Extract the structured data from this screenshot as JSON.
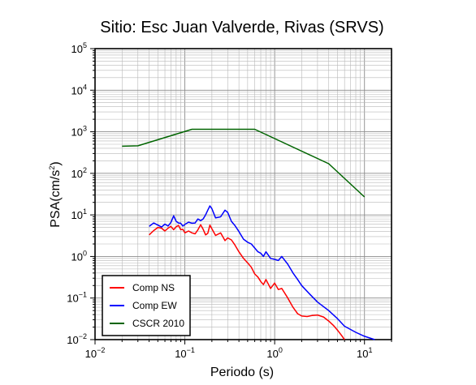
{
  "chart_data": {
    "type": "line",
    "title": "Sitio: Esc Juan Valverde, Rivas (SRVS)",
    "xlabel": "Periodo (s)",
    "ylabel_base": "PSA(cm/s",
    "ylabel_exp": "2",
    "ylabel_close": ")",
    "xscale": "log",
    "yscale": "log",
    "xlim": [
      0.01,
      20
    ],
    "ylim": [
      0.01,
      100000
    ],
    "grid": true,
    "legend_position": "bottom-left",
    "x_ticks": [
      {
        "value": 0.01,
        "base": "10",
        "exp": "−2"
      },
      {
        "value": 0.1,
        "base": "10",
        "exp": "−1"
      },
      {
        "value": 1,
        "base": "10",
        "exp": "0"
      },
      {
        "value": 10,
        "base": "10",
        "exp": "1"
      }
    ],
    "y_ticks": [
      {
        "value": 0.01,
        "base": "10",
        "exp": "−2"
      },
      {
        "value": 0.1,
        "base": "10",
        "exp": "−1"
      },
      {
        "value": 1,
        "base": "10",
        "exp": "0"
      },
      {
        "value": 10,
        "base": "10",
        "exp": "1"
      },
      {
        "value": 100,
        "base": "10",
        "exp": "2"
      },
      {
        "value": 1000,
        "base": "10",
        "exp": "3"
      },
      {
        "value": 10000,
        "base": "10",
        "exp": "4"
      },
      {
        "value": 100000,
        "base": "10",
        "exp": "5"
      }
    ],
    "series": [
      {
        "name": "Comp NS",
        "color": "#ff0000",
        "x": [
          0.04,
          0.045,
          0.05,
          0.055,
          0.06,
          0.065,
          0.07,
          0.075,
          0.08,
          0.085,
          0.09,
          0.095,
          0.1,
          0.11,
          0.12,
          0.13,
          0.14,
          0.15,
          0.16,
          0.17,
          0.18,
          0.19,
          0.2,
          0.22,
          0.25,
          0.28,
          0.3,
          0.33,
          0.36,
          0.4,
          0.45,
          0.5,
          0.55,
          0.6,
          0.65,
          0.7,
          0.75,
          0.8,
          0.9,
          1.0,
          1.1,
          1.2,
          1.4,
          1.6,
          1.8,
          2.0,
          2.3,
          2.6,
          3.0,
          3.5,
          4.0,
          4.5,
          5.0,
          5.5,
          6.0
        ],
        "y": [
          3.3,
          4.2,
          5.0,
          4.8,
          4.1,
          4.8,
          5.3,
          4.4,
          5.2,
          5.6,
          4.4,
          4.5,
          3.7,
          4.1,
          3.7,
          3.5,
          4.4,
          5.8,
          4.5,
          3.3,
          3.6,
          5.7,
          4.6,
          3.2,
          3.7,
          2.4,
          2.8,
          2.5,
          1.9,
          1.3,
          0.9,
          0.7,
          0.55,
          0.38,
          0.32,
          0.25,
          0.21,
          0.28,
          0.17,
          0.23,
          0.16,
          0.17,
          0.1,
          0.06,
          0.042,
          0.037,
          0.036,
          0.038,
          0.039,
          0.035,
          0.028,
          0.022,
          0.017,
          0.013,
          0.01
        ]
      },
      {
        "name": "Comp EW",
        "color": "#0000ff",
        "x": [
          0.04,
          0.045,
          0.05,
          0.055,
          0.06,
          0.065,
          0.07,
          0.075,
          0.08,
          0.085,
          0.09,
          0.095,
          0.1,
          0.11,
          0.12,
          0.13,
          0.14,
          0.15,
          0.16,
          0.17,
          0.18,
          0.19,
          0.2,
          0.22,
          0.25,
          0.28,
          0.3,
          0.33,
          0.36,
          0.4,
          0.45,
          0.5,
          0.55,
          0.6,
          0.65,
          0.7,
          0.75,
          0.8,
          0.9,
          1.0,
          1.1,
          1.2,
          1.4,
          1.6,
          1.8,
          2.0,
          2.5,
          3.0,
          4.0,
          5.0,
          6.0,
          8.0,
          10.0,
          13.0
        ],
        "y": [
          5.3,
          6.4,
          5.7,
          5.1,
          6.0,
          5.4,
          6.6,
          9.5,
          7.0,
          6.4,
          6.3,
          5.4,
          5.9,
          6.7,
          6.3,
          6.4,
          8.0,
          7.3,
          8.0,
          10.0,
          13.0,
          16.5,
          14.0,
          8.5,
          9.0,
          13.0,
          11.5,
          7.0,
          5.6,
          4.0,
          2.6,
          2.2,
          2.0,
          1.6,
          1.3,
          1.2,
          1.0,
          1.3,
          0.9,
          0.85,
          0.8,
          1.0,
          0.65,
          0.4,
          0.28,
          0.2,
          0.12,
          0.08,
          0.05,
          0.032,
          0.021,
          0.015,
          0.012,
          0.01
        ]
      },
      {
        "name": "CSCR 2010",
        "color": "#006400",
        "x": [
          0.02,
          0.03,
          0.12,
          0.6,
          4.0,
          10.0
        ],
        "y": [
          450,
          460,
          1150,
          1150,
          170,
          27
        ]
      }
    ]
  }
}
